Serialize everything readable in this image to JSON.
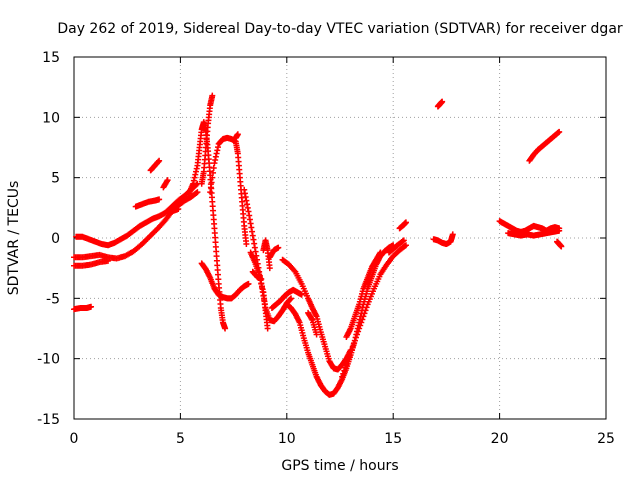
{
  "chart_data": {
    "type": "scatter",
    "title": "Day 262 of 2019, Sidereal Day-to-day VTEC variation (SDTVAR) for receiver dgar",
    "xlabel": "GPS time / hours",
    "ylabel": "SDTVAR / TECUs",
    "xlim": [
      0,
      25
    ],
    "ylim": [
      -15,
      15
    ],
    "xticks": [
      "0",
      "5",
      "10",
      "15",
      "20",
      "25"
    ],
    "yticks": [
      "-15",
      "-10",
      "-5",
      "0",
      "5",
      "10",
      "15"
    ],
    "grid": true,
    "marker": "+",
    "color": "#ff0000",
    "series": [
      {
        "points": [
          [
            0.1,
            0.1
          ],
          [
            0.4,
            0.1
          ],
          [
            0.7,
            -0.1
          ],
          [
            1.0,
            -0.3
          ],
          [
            1.3,
            -0.5
          ],
          [
            1.6,
            -0.6
          ],
          [
            1.9,
            -0.4
          ],
          [
            2.2,
            -0.1
          ],
          [
            2.5,
            0.2
          ],
          [
            2.8,
            0.6
          ],
          [
            3.1,
            1.0
          ],
          [
            3.4,
            1.3
          ],
          [
            3.7,
            1.6
          ],
          [
            4.0,
            1.8
          ],
          [
            4.3,
            2.1
          ],
          [
            4.6,
            2.6
          ],
          [
            4.9,
            3.1
          ],
          [
            5.2,
            3.5
          ],
          [
            5.5,
            4.0
          ],
          [
            5.8,
            4.5
          ]
        ]
      },
      {
        "points": [
          [
            0.0,
            -1.6
          ],
          [
            0.4,
            -1.6
          ],
          [
            0.8,
            -1.5
          ],
          [
            1.2,
            -1.4
          ],
          [
            1.6,
            -1.6
          ],
          [
            2.0,
            -1.7
          ],
          [
            2.4,
            -1.5
          ],
          [
            2.8,
            -1.1
          ],
          [
            3.2,
            -0.5
          ],
          [
            3.6,
            0.2
          ],
          [
            4.0,
            0.9
          ],
          [
            4.3,
            1.5
          ],
          [
            4.6,
            2.2
          ],
          [
            4.9,
            2.7
          ],
          [
            5.2,
            3.1
          ],
          [
            5.5,
            3.4
          ],
          [
            5.8,
            3.8
          ]
        ]
      },
      {
        "points": [
          [
            0.0,
            -2.3
          ],
          [
            0.4,
            -2.3
          ],
          [
            0.8,
            -2.2
          ],
          [
            1.2,
            -2.0
          ],
          [
            1.6,
            -1.9
          ]
        ]
      },
      {
        "points": [
          [
            0.0,
            -5.9
          ],
          [
            0.3,
            -5.8
          ],
          [
            0.6,
            -5.8
          ],
          [
            0.8,
            -5.7
          ]
        ]
      },
      {
        "points": [
          [
            2.9,
            2.6
          ],
          [
            3.2,
            2.8
          ],
          [
            3.5,
            3.0
          ],
          [
            3.8,
            3.1
          ],
          [
            4.0,
            3.2
          ]
        ]
      },
      {
        "points": [
          [
            3.6,
            5.6
          ],
          [
            3.8,
            6.0
          ],
          [
            4.0,
            6.4
          ]
        ]
      },
      {
        "points": [
          [
            4.2,
            4.2
          ],
          [
            4.4,
            4.8
          ]
        ]
      },
      {
        "points": [
          [
            4.4,
            2.0
          ],
          [
            4.6,
            2.2
          ],
          [
            4.9,
            2.4
          ]
        ]
      },
      {
        "points": [
          [
            5.4,
            3.7
          ],
          [
            5.6,
            4.5
          ],
          [
            5.8,
            6.0
          ],
          [
            5.9,
            7.5
          ],
          [
            6.0,
            9.0
          ],
          [
            6.1,
            9.6
          ],
          [
            6.2,
            8.8
          ],
          [
            6.3,
            7.2
          ],
          [
            6.4,
            5.2
          ],
          [
            6.5,
            3.0
          ],
          [
            6.6,
            0.8
          ],
          [
            6.7,
            -1.5
          ],
          [
            6.8,
            -3.8
          ],
          [
            6.9,
            -5.8
          ],
          [
            7.0,
            -7.0
          ],
          [
            7.1,
            -7.5
          ]
        ]
      },
      {
        "points": [
          [
            6.0,
            4.5
          ],
          [
            6.1,
            5.5
          ],
          [
            6.2,
            7.5
          ],
          [
            6.3,
            9.5
          ],
          [
            6.4,
            11.0
          ],
          [
            6.5,
            11.8
          ]
        ]
      },
      {
        "points": [
          [
            6.4,
            3.8
          ],
          [
            6.6,
            6.2
          ],
          [
            6.8,
            7.8
          ],
          [
            7.0,
            8.2
          ],
          [
            7.2,
            8.3
          ],
          [
            7.4,
            8.2
          ],
          [
            7.6,
            8.0
          ],
          [
            7.7,
            7.0
          ],
          [
            7.8,
            5.0
          ],
          [
            7.9,
            3.0
          ],
          [
            8.0,
            1.0
          ],
          [
            8.1,
            -0.5
          ]
        ]
      },
      {
        "points": [
          [
            7.6,
            8.3
          ],
          [
            7.7,
            8.6
          ]
        ]
      },
      {
        "points": [
          [
            6.0,
            -2.1
          ],
          [
            6.2,
            -2.6
          ],
          [
            6.4,
            -3.3
          ],
          [
            6.6,
            -4.2
          ],
          [
            6.8,
            -4.7
          ],
          [
            7.0,
            -4.9
          ],
          [
            7.2,
            -5.0
          ],
          [
            7.4,
            -5.0
          ],
          [
            7.6,
            -4.7
          ],
          [
            7.8,
            -4.3
          ],
          [
            8.0,
            -4.0
          ],
          [
            8.2,
            -3.8
          ]
        ]
      },
      {
        "points": [
          [
            8.0,
            4.0
          ],
          [
            8.2,
            2.2
          ],
          [
            8.4,
            0.2
          ],
          [
            8.6,
            -1.8
          ],
          [
            8.8,
            -3.8
          ],
          [
            9.0,
            -5.8
          ],
          [
            9.2,
            -6.8
          ],
          [
            9.4,
            -6.9
          ],
          [
            9.6,
            -6.5
          ],
          [
            9.8,
            -6.0
          ],
          [
            10.0,
            -5.4
          ],
          [
            10.2,
            -5.0
          ]
        ]
      },
      {
        "points": [
          [
            8.4,
            -2.8
          ],
          [
            8.6,
            -3.2
          ],
          [
            8.8,
            -3.4
          ]
        ]
      },
      {
        "points": [
          [
            8.3,
            -1.2
          ],
          [
            8.5,
            -2.0
          ],
          [
            8.7,
            -3.0
          ],
          [
            8.9,
            -4.5
          ],
          [
            9.0,
            -6.0
          ],
          [
            9.1,
            -7.5
          ]
        ]
      },
      {
        "points": [
          [
            8.9,
            -1.0
          ],
          [
            9.0,
            -0.2
          ],
          [
            9.1,
            -1.0
          ],
          [
            9.2,
            -2.5
          ]
        ]
      },
      {
        "points": [
          [
            9.2,
            -1.6
          ],
          [
            9.4,
            -1.0
          ],
          [
            9.6,
            -0.8
          ]
        ]
      },
      {
        "points": [
          [
            9.3,
            -5.8
          ],
          [
            9.5,
            -5.5
          ],
          [
            9.7,
            -5.2
          ],
          [
            9.9,
            -4.8
          ],
          [
            10.1,
            -4.5
          ],
          [
            10.3,
            -4.3
          ],
          [
            10.5,
            -4.5
          ],
          [
            10.7,
            -4.7
          ]
        ]
      },
      {
        "points": [
          [
            9.8,
            -1.8
          ],
          [
            10.1,
            -2.2
          ],
          [
            10.4,
            -2.8
          ],
          [
            10.7,
            -3.8
          ],
          [
            11.0,
            -5.0
          ],
          [
            11.2,
            -5.8
          ],
          [
            11.4,
            -6.5
          ],
          [
            11.6,
            -7.8
          ],
          [
            11.8,
            -9.0
          ],
          [
            12.0,
            -10.2
          ],
          [
            12.2,
            -10.8
          ],
          [
            12.4,
            -10.9
          ],
          [
            12.6,
            -10.5
          ],
          [
            12.8,
            -10.0
          ],
          [
            13.0,
            -9.3
          ]
        ]
      },
      {
        "points": [
          [
            10.0,
            -5.5
          ],
          [
            10.2,
            -5.8
          ],
          [
            10.4,
            -6.3
          ],
          [
            10.6,
            -7.0
          ],
          [
            10.8,
            -8.3
          ],
          [
            11.0,
            -9.5
          ],
          [
            11.2,
            -10.5
          ],
          [
            11.4,
            -11.5
          ],
          [
            11.6,
            -12.2
          ],
          [
            11.8,
            -12.7
          ],
          [
            12.0,
            -13.0
          ],
          [
            12.2,
            -12.9
          ],
          [
            12.4,
            -12.4
          ],
          [
            12.6,
            -11.7
          ],
          [
            12.8,
            -10.8
          ],
          [
            13.0,
            -9.7
          ],
          [
            13.2,
            -8.5
          ],
          [
            13.4,
            -7.0
          ],
          [
            13.6,
            -5.5
          ],
          [
            13.8,
            -4.2
          ],
          [
            14.0,
            -3.2
          ],
          [
            14.2,
            -2.2
          ],
          [
            14.4,
            -1.5
          ],
          [
            14.6,
            -1.1
          ],
          [
            14.8,
            -0.8
          ],
          [
            15.0,
            -0.6
          ]
        ]
      },
      {
        "points": [
          [
            11.0,
            -6.2
          ],
          [
            11.2,
            -6.8
          ],
          [
            11.4,
            -8.0
          ]
        ]
      },
      {
        "points": [
          [
            12.8,
            -8.2
          ],
          [
            13.0,
            -7.5
          ],
          [
            13.2,
            -6.5
          ],
          [
            13.4,
            -5.5
          ],
          [
            13.6,
            -4.2
          ],
          [
            13.8,
            -3.3
          ],
          [
            14.0,
            -2.4
          ],
          [
            14.2,
            -1.8
          ],
          [
            14.4,
            -1.2
          ]
        ]
      },
      {
        "points": [
          [
            12.6,
            -11.5
          ],
          [
            12.9,
            -10.0
          ],
          [
            13.2,
            -8.5
          ],
          [
            13.5,
            -7.0
          ],
          [
            13.8,
            -5.5
          ],
          [
            14.1,
            -4.2
          ],
          [
            14.4,
            -3.0
          ],
          [
            14.7,
            -2.2
          ],
          [
            15.0,
            -1.5
          ],
          [
            15.3,
            -1.0
          ],
          [
            15.6,
            -0.6
          ]
        ]
      },
      {
        "points": [
          [
            14.8,
            -1.2
          ],
          [
            15.0,
            -0.9
          ],
          [
            15.2,
            -0.6
          ],
          [
            15.5,
            -0.2
          ]
        ]
      },
      {
        "points": [
          [
            15.3,
            0.8
          ],
          [
            15.5,
            1.1
          ],
          [
            15.6,
            1.3
          ]
        ]
      },
      {
        "points": [
          [
            16.9,
            -0.1
          ],
          [
            17.1,
            -0.2
          ],
          [
            17.3,
            -0.4
          ],
          [
            17.5,
            -0.5
          ],
          [
            17.7,
            -0.3
          ],
          [
            17.8,
            0.3
          ]
        ]
      },
      {
        "points": [
          [
            17.1,
            10.9
          ],
          [
            17.2,
            11.1
          ],
          [
            17.3,
            11.3
          ]
        ]
      },
      {
        "points": [
          [
            20.0,
            1.4
          ],
          [
            20.2,
            1.2
          ],
          [
            20.4,
            1.0
          ],
          [
            20.6,
            0.8
          ],
          [
            20.8,
            0.6
          ],
          [
            21.0,
            0.5
          ],
          [
            21.2,
            0.6
          ],
          [
            21.4,
            0.8
          ],
          [
            21.6,
            1.0
          ],
          [
            21.8,
            0.9
          ],
          [
            22.0,
            0.8
          ],
          [
            22.2,
            0.6
          ],
          [
            22.4,
            0.8
          ],
          [
            22.6,
            0.9
          ],
          [
            22.8,
            0.8
          ]
        ]
      },
      {
        "points": [
          [
            20.4,
            0.4
          ],
          [
            20.7,
            0.3
          ],
          [
            21.0,
            0.2
          ],
          [
            21.3,
            0.3
          ],
          [
            21.6,
            0.2
          ],
          [
            21.9,
            0.3
          ],
          [
            22.2,
            0.4
          ],
          [
            22.5,
            0.5
          ],
          [
            22.8,
            0.6
          ]
        ]
      },
      {
        "points": [
          [
            21.4,
            6.4
          ],
          [
            21.6,
            6.9
          ],
          [
            21.8,
            7.3
          ],
          [
            22.0,
            7.6
          ],
          [
            22.2,
            7.9
          ],
          [
            22.4,
            8.2
          ],
          [
            22.6,
            8.5
          ],
          [
            22.8,
            8.8
          ]
        ]
      },
      {
        "points": [
          [
            22.7,
            -0.3
          ],
          [
            22.8,
            -0.5
          ],
          [
            22.9,
            -0.7
          ]
        ]
      }
    ]
  }
}
